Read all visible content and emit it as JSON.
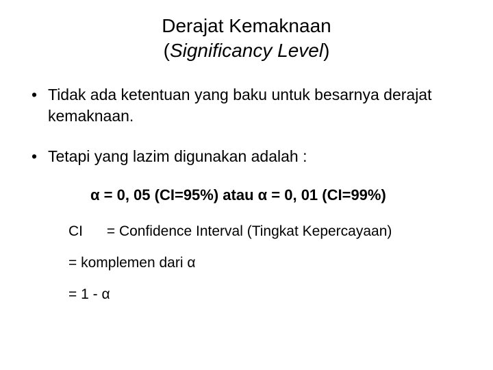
{
  "title": {
    "line1": "Derajat Kemaknaan",
    "line2_open": "(",
    "line2_italic": "Significancy Level",
    "line2_close": ")"
  },
  "bullets": {
    "b1": "Tidak ada ketentuan yang baku untuk besarnya derajat kemaknaan.",
    "b2": "Tetapi yang lazim digunakan adalah :"
  },
  "formula": "α = 0, 05 (CI=95%) atau α = 0, 01 (CI=99%)",
  "defs": {
    "ci_label": "CI",
    "ci_text": "= Confidence Interval (Tingkat Kepercayaan)",
    "line2": "= komplemen dari α",
    "line3": "= 1 - α"
  }
}
